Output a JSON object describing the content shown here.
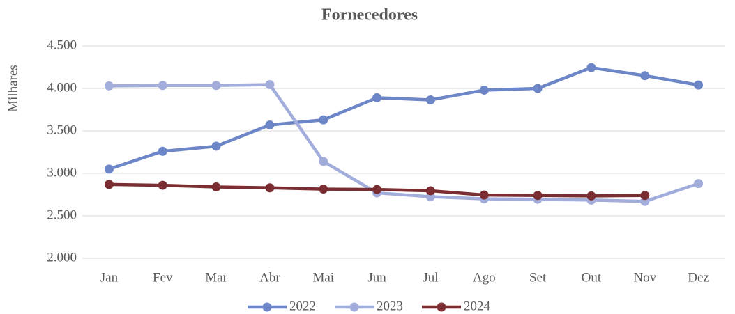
{
  "chart_data": {
    "type": "line",
    "title": "Fornecedores",
    "y_label": "Milhares",
    "categories": [
      "Jan",
      "Fev",
      "Mar",
      "Abr",
      "Mai",
      "Jun",
      "Jul",
      "Ago",
      "Set",
      "Out",
      "Nov",
      "Dez"
    ],
    "series": [
      {
        "name": "2022",
        "color": "#6d86c8",
        "values": [
          3050,
          3260,
          3320,
          3570,
          3630,
          3890,
          3865,
          3980,
          4000,
          4245,
          4150,
          4040
        ]
      },
      {
        "name": "2023",
        "color": "#a2addb",
        "values": [
          4030,
          4035,
          4035,
          4045,
          3140,
          2770,
          2725,
          2700,
          2695,
          2685,
          2670,
          2880
        ]
      },
      {
        "name": "2024",
        "color": "#7b2e31",
        "values": [
          2870,
          2860,
          2840,
          2830,
          2815,
          2810,
          2795,
          2745,
          2740,
          2735,
          2740,
          null
        ]
      }
    ],
    "ylim": [
      2000,
      4500
    ],
    "yticks": [
      {
        "value": 2000,
        "label": "2.000"
      },
      {
        "value": 2500,
        "label": "2.500"
      },
      {
        "value": 3000,
        "label": "3.000"
      },
      {
        "value": 3500,
        "label": "3.500"
      },
      {
        "value": 4000,
        "label": "4.000"
      },
      {
        "value": 4500,
        "label": "4.500"
      }
    ],
    "grid": true,
    "legend": "bottom"
  }
}
